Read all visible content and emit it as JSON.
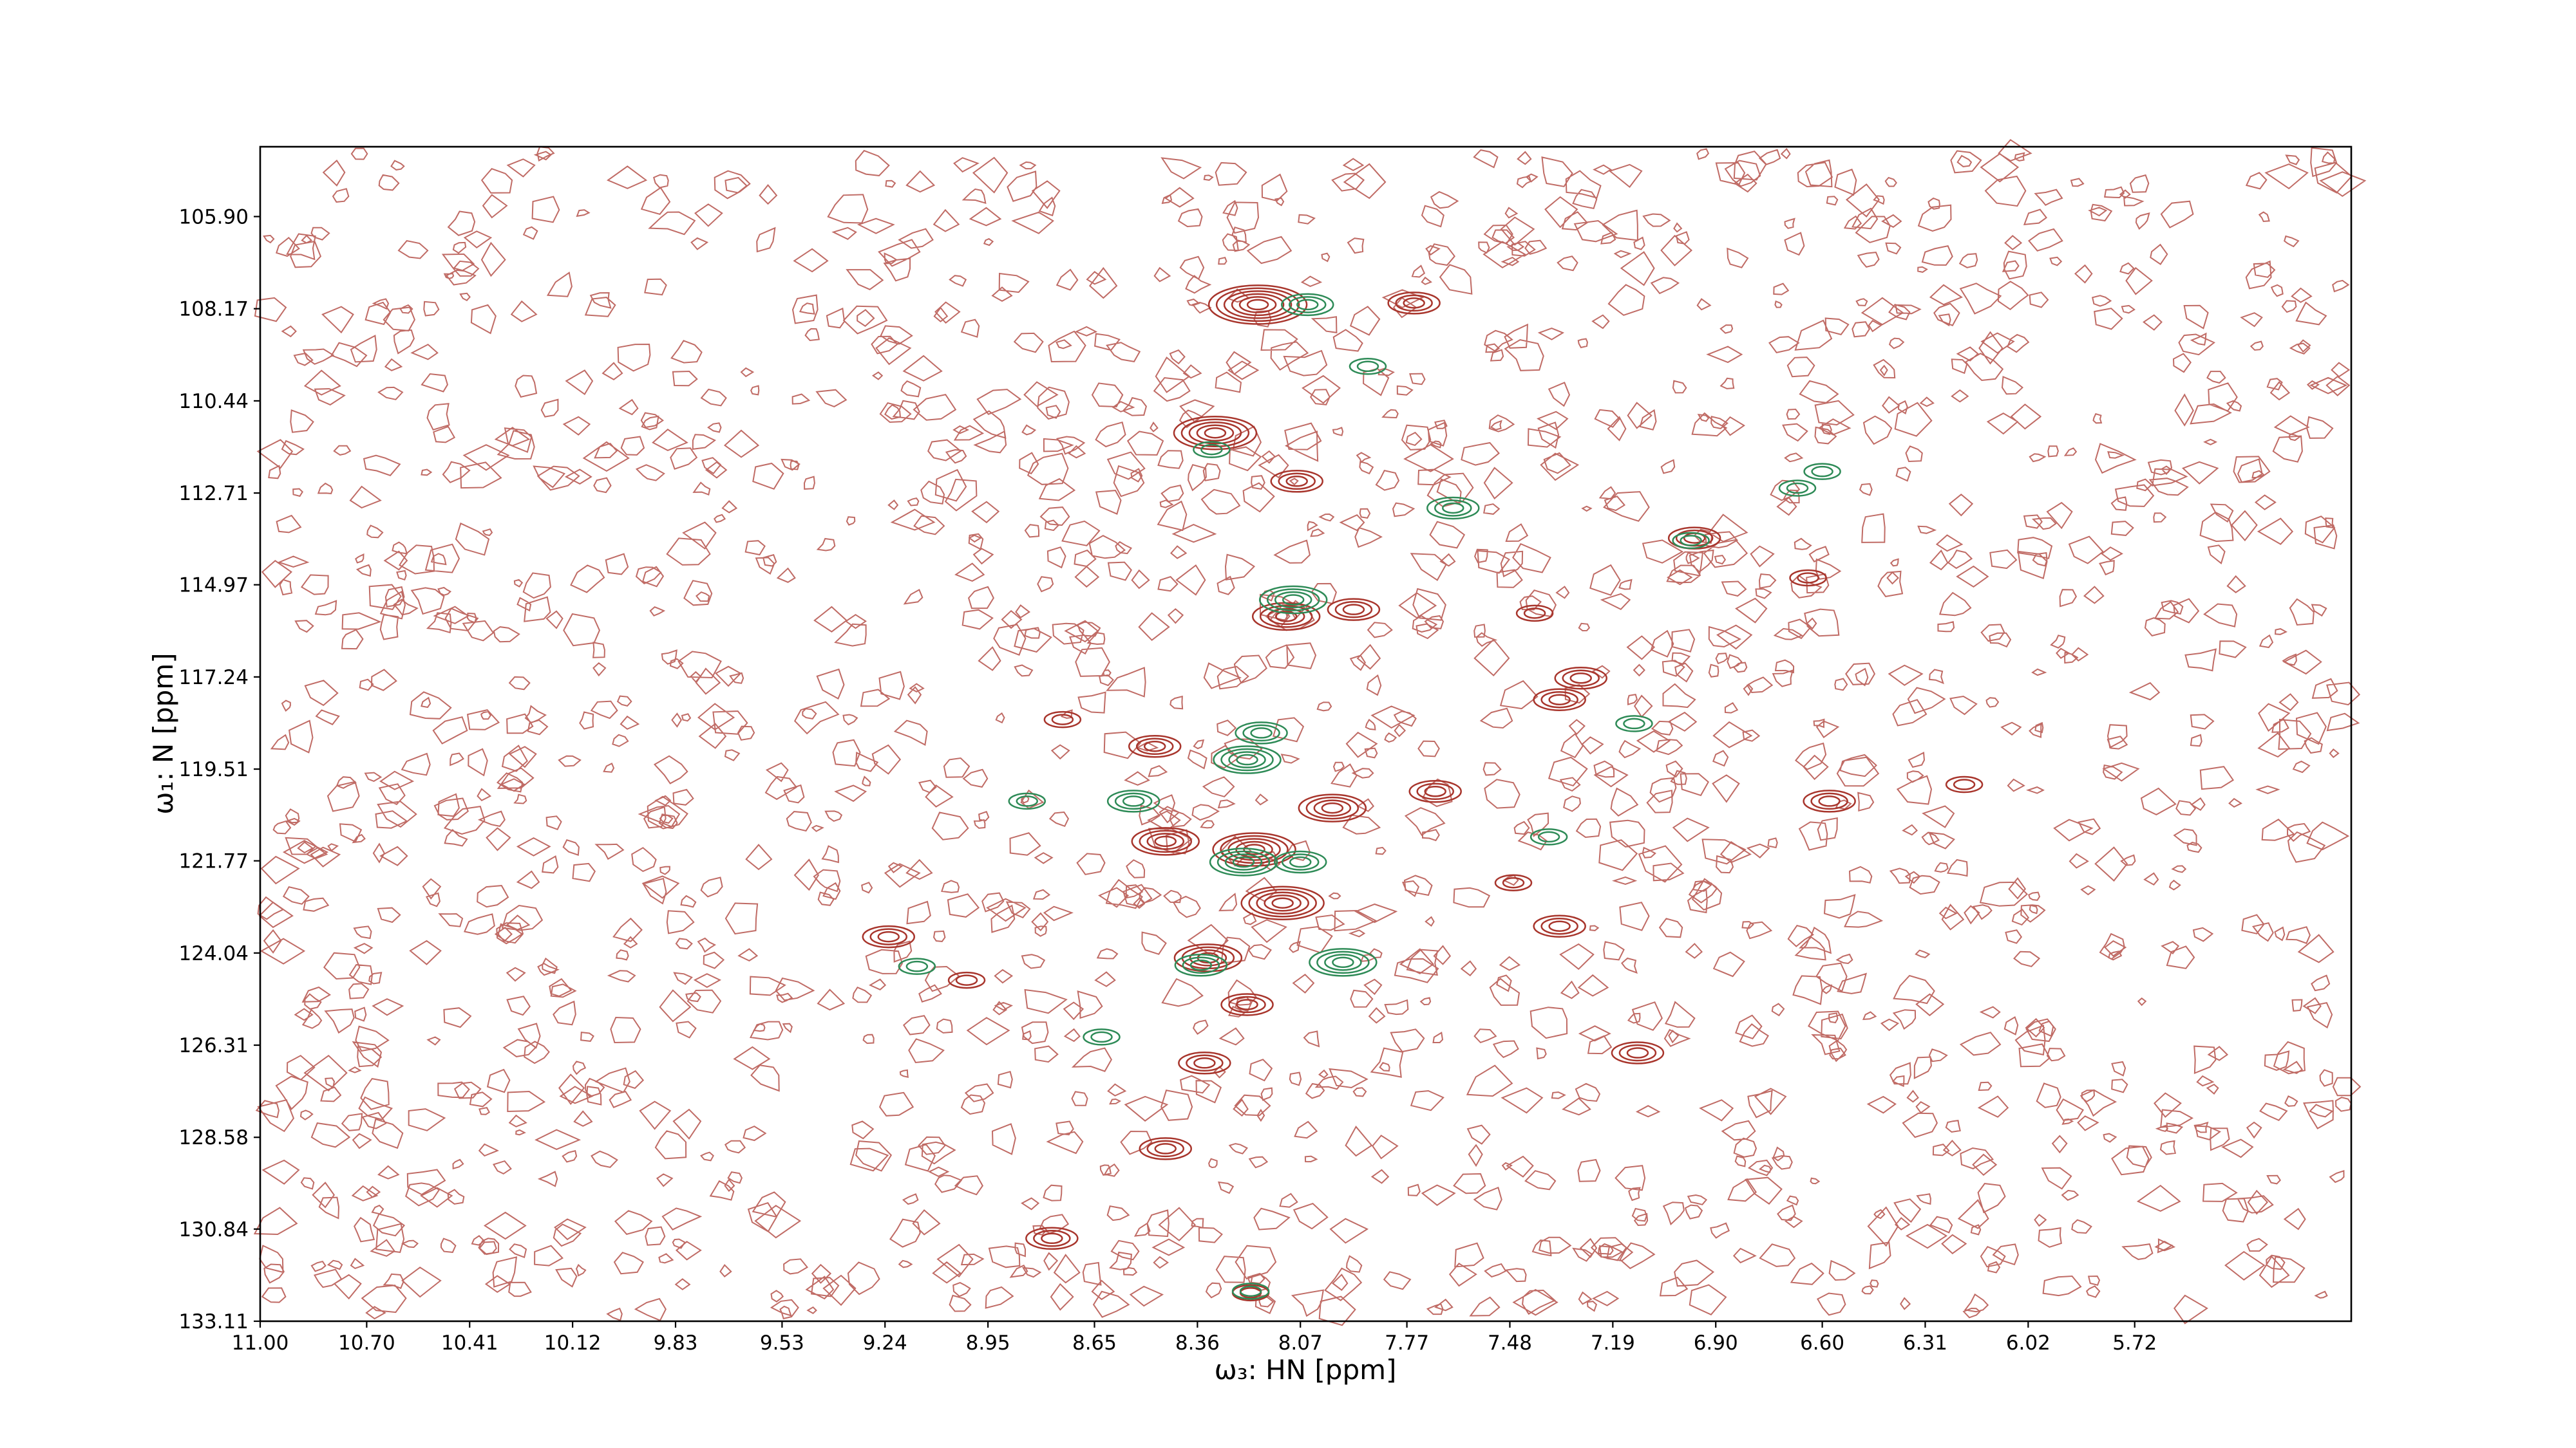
{
  "chart_data": {
    "type": "contour",
    "xlabel": "ω₃: HN [ppm]",
    "ylabel": "ω₁: N [ppm]",
    "xlim": [
      11.0,
      5.11
    ],
    "ylim": [
      133.11,
      104.18
    ],
    "xticks": [
      {
        "value": 11.0,
        "label": "11.00"
      },
      {
        "value": 10.7,
        "label": "10.70"
      },
      10.41,
      10.12,
      9.83,
      9.53,
      9.24,
      8.95,
      8.65,
      8.36,
      8.07,
      7.77,
      7.48,
      7.19,
      {
        "value": 6.9,
        "label": "6.90"
      },
      {
        "value": 6.6,
        "label": "6.60"
      },
      6.31,
      6.02,
      5.72
    ],
    "yticks": [
      {
        "value": 105.9,
        "label": "105.90"
      },
      108.17,
      110.44,
      112.71,
      114.97,
      117.24,
      119.51,
      121.77,
      124.04,
      126.31,
      128.58,
      130.84,
      133.11
    ],
    "series": [
      {
        "color": "#a8352c",
        "x": [
          8.19,
          7.75,
          8.31,
          8.08,
          8.11,
          7.92,
          7.34,
          7.28,
          8.74,
          6.58,
          6.2,
          8.12,
          7.34,
          8.22,
          8.45,
          8.77,
          7.12,
          8.34,
          9.23,
          9.01,
          7.41,
          6.64,
          6.96,
          7.47,
          8.33,
          7.69,
          8.21,
          8.2,
          8.45,
          7.98,
          8.48
        ],
        "y": [
          108.07,
          108.03,
          111.23,
          112.42,
          115.75,
          115.58,
          117.8,
          117.27,
          118.29,
          120.3,
          119.89,
          122.81,
          123.38,
          125.31,
          128.86,
          131.07,
          126.5,
          126.75,
          123.64,
          124.71,
          115.67,
          114.8,
          113.82,
          122.31,
          124.16,
          120.06,
          132.41,
          121.49,
          121.29,
          120.47,
          118.95
        ],
        "levels": [
          6,
          3,
          5,
          3,
          4,
          3,
          3,
          3,
          2,
          3,
          2,
          5,
          3,
          3,
          3,
          3,
          3,
          3,
          3,
          2,
          2,
          2,
          3,
          2,
          4,
          3,
          2,
          5,
          4,
          4,
          3
        ]
      },
      {
        "color": "#2e8b57",
        "x": [
          8.05,
          8.09,
          8.22,
          8.18,
          7.95,
          7.64,
          6.6,
          6.67,
          8.32,
          8.84,
          8.54,
          8.07,
          8.23,
          8.63,
          8.35,
          7.37,
          7.13,
          6.97,
          7.88,
          8.21,
          9.15
        ],
        "y": [
          108.07,
          115.34,
          119.28,
          118.62,
          124.27,
          113.08,
          112.18,
          112.59,
          111.64,
          120.3,
          120.3,
          121.8,
          121.8,
          126.11,
          124.34,
          121.18,
          118.39,
          113.88,
          109.59,
          132.37,
          124.37
        ],
        "levels": [
          3,
          4,
          4,
          3,
          4,
          3,
          2,
          2,
          2,
          2,
          3,
          3,
          4,
          2,
          3,
          2,
          2,
          2,
          2,
          2,
          2
        ]
      }
    ]
  }
}
